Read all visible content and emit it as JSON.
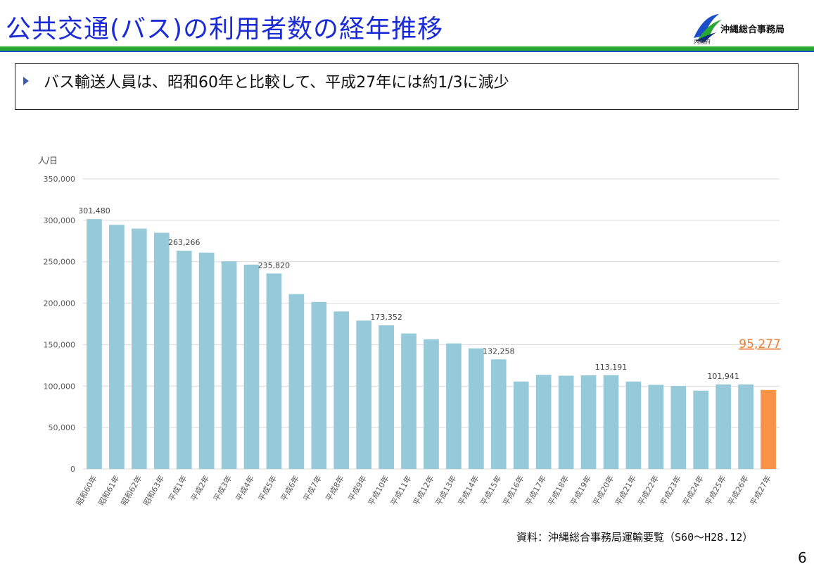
{
  "header": {
    "title": "公共交通(バス)の利用者数の経年推移",
    "org_name": "沖縄総合事務局",
    "org_sub": "内閣府"
  },
  "callout": {
    "text": "バス輸送人員は、昭和60年と比較して、平成27年には約1/3に減少"
  },
  "chart_data": {
    "type": "bar",
    "ylabel": "人/日",
    "ylim": [
      0,
      350000
    ],
    "yticks": [
      0,
      50000,
      100000,
      150000,
      200000,
      250000,
      300000,
      350000
    ],
    "ytick_labels": [
      "0",
      "50,000",
      "100,000",
      "150,000",
      "200,000",
      "250,000",
      "300,000",
      "350,000"
    ],
    "grid": true,
    "categories": [
      "昭和60年",
      "昭和61年",
      "昭和62年",
      "昭和63年",
      "平成1年",
      "平成2年",
      "平成3年",
      "平成4年",
      "平成5年",
      "平成6年",
      "平成7年",
      "平成8年",
      "平成9年",
      "平成10年",
      "平成11年",
      "平成12年",
      "平成13年",
      "平成14年",
      "平成15年",
      "平成16年",
      "平成17年",
      "平成18年",
      "平成19年",
      "平成20年",
      "平成21年",
      "平成22年",
      "平成23年",
      "平成24年",
      "平成25年",
      "平成26年",
      "平成27年"
    ],
    "values": [
      301480,
      294500,
      290000,
      285000,
      263266,
      261000,
      250500,
      246500,
      235820,
      211000,
      201500,
      190000,
      179000,
      173352,
      163500,
      156500,
      151500,
      145500,
      132258,
      105500,
      113500,
      112500,
      113000,
      113191,
      105500,
      101500,
      100000,
      94500,
      101941,
      101941,
      95277
    ],
    "data_labels": [
      {
        "index": 0,
        "text": "301,480"
      },
      {
        "index": 4,
        "text": "263,266"
      },
      {
        "index": 8,
        "text": "235,820"
      },
      {
        "index": 13,
        "text": "173,352"
      },
      {
        "index": 18,
        "text": "132,258"
      },
      {
        "index": 23,
        "text": "113,191"
      },
      {
        "index": 28,
        "text": "101,941"
      }
    ],
    "highlight": {
      "index": 30,
      "text": "95,277"
    },
    "colors": {
      "bar": "#96cad8",
      "highlight": "#f79246",
      "highlight_label": "#ed7d31",
      "grid": "#d9d9d9",
      "axis_text": "#595959"
    }
  },
  "footer": {
    "source": "資料：沖縄総合事務局運輸要覧（S60～H28.12）",
    "page_number": "6"
  }
}
